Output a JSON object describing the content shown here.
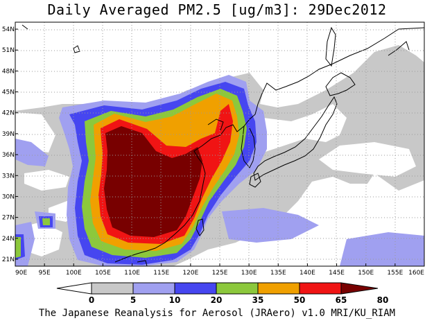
{
  "title": "Daily Averaged PM2.5 [ug/m3]: 29Dec2012",
  "footer": "The Japanese Reanalysis for Aerosol (JRAero) v1.0 MRI/KU_RIAM",
  "map": {
    "lon_range": [
      90,
      160
    ],
    "lat_range": [
      20,
      55
    ],
    "lon_ticks": [
      "90E",
      "95E",
      "100E",
      "105E",
      "110E",
      "115E",
      "120E",
      "125E",
      "130E",
      "135E",
      "140E",
      "145E",
      "150E",
      "155E",
      "160E"
    ],
    "lat_ticks": [
      "21N",
      "24N",
      "27N",
      "30N",
      "33N",
      "36N",
      "39N",
      "42N",
      "45N",
      "48N",
      "51N",
      "54N"
    ]
  },
  "colorbar": {
    "labels": [
      "0",
      "5",
      "10",
      "20",
      "35",
      "50",
      "65",
      "80"
    ],
    "colors": [
      "#ffffff",
      "#c8c8c8",
      "#a0a0f0",
      "#4646f0",
      "#8cc83c",
      "#f0a000",
      "#f01414",
      "#780000"
    ]
  }
}
